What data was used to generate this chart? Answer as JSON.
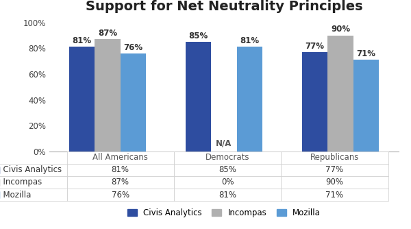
{
  "title": "Support for Net Neutrality Principles",
  "groups": [
    "All Americans",
    "Democrats",
    "Republicans"
  ],
  "series": [
    {
      "name": "Civis Analytics",
      "values": [
        81,
        85,
        77
      ],
      "color": "#2E4DA0"
    },
    {
      "name": "Incompas",
      "values": [
        87,
        0,
        90
      ],
      "color": "#B0B0B0"
    },
    {
      "name": "Mozilla",
      "values": [
        76,
        81,
        71
      ],
      "color": "#5B9BD5"
    }
  ],
  "na_group": 1,
  "na_series": 1,
  "na_label": "N/A",
  "ylim": [
    0,
    105
  ],
  "yticks": [
    0,
    20,
    40,
    60,
    80,
    100
  ],
  "ytick_labels": [
    "0%",
    "20%",
    "40%",
    "60%",
    "80%",
    "100%"
  ],
  "bar_width": 0.22,
  "background_color": "#FFFFFF",
  "table_rows": [
    [
      "Civis Analytics",
      "81%",
      "85%",
      "77%"
    ],
    [
      "Incompas",
      "87%",
      "0%",
      "90%"
    ],
    [
      "Mozilla",
      "76%",
      "81%",
      "71%"
    ]
  ],
  "table_col_labels": [
    "All Americans",
    "Democrats",
    "Republicans"
  ],
  "title_fontsize": 14,
  "label_fontsize": 8.5,
  "tick_fontsize": 8.5,
  "legend_fontsize": 8.5,
  "table_fontsize": 8.5,
  "series_colors": [
    "#2E4DA0",
    "#B0B0B0",
    "#5B9BD5"
  ],
  "series_names": [
    "Civis Analytics",
    "Incompas",
    "Mozilla"
  ]
}
